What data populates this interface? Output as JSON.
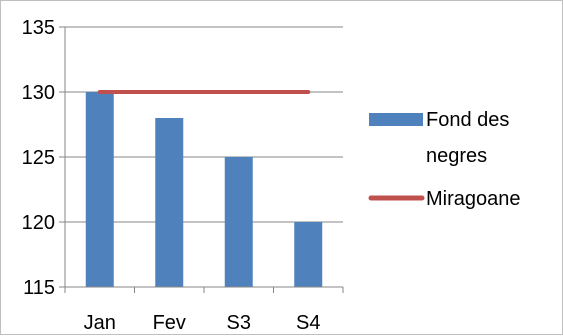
{
  "chart_data": {
    "type": "bar",
    "categories": [
      "Jan",
      "Fev",
      "S3",
      "S4"
    ],
    "series": [
      {
        "name": "Fond des negres",
        "kind": "bar",
        "values": [
          130,
          128,
          125,
          120
        ],
        "color": "#4f81bd"
      },
      {
        "name": "Miragoane",
        "kind": "line",
        "values": [
          130,
          130,
          130,
          130
        ],
        "color": "#c0504d"
      }
    ],
    "ylim": [
      115,
      135
    ],
    "yticks": [
      115,
      120,
      125,
      130,
      135
    ],
    "grid": true,
    "legend": "right",
    "legend_labels": [
      {
        "line1": "Fond des",
        "line2": "negres"
      },
      {
        "line1": "Miragoane",
        "line2": ""
      }
    ]
  }
}
